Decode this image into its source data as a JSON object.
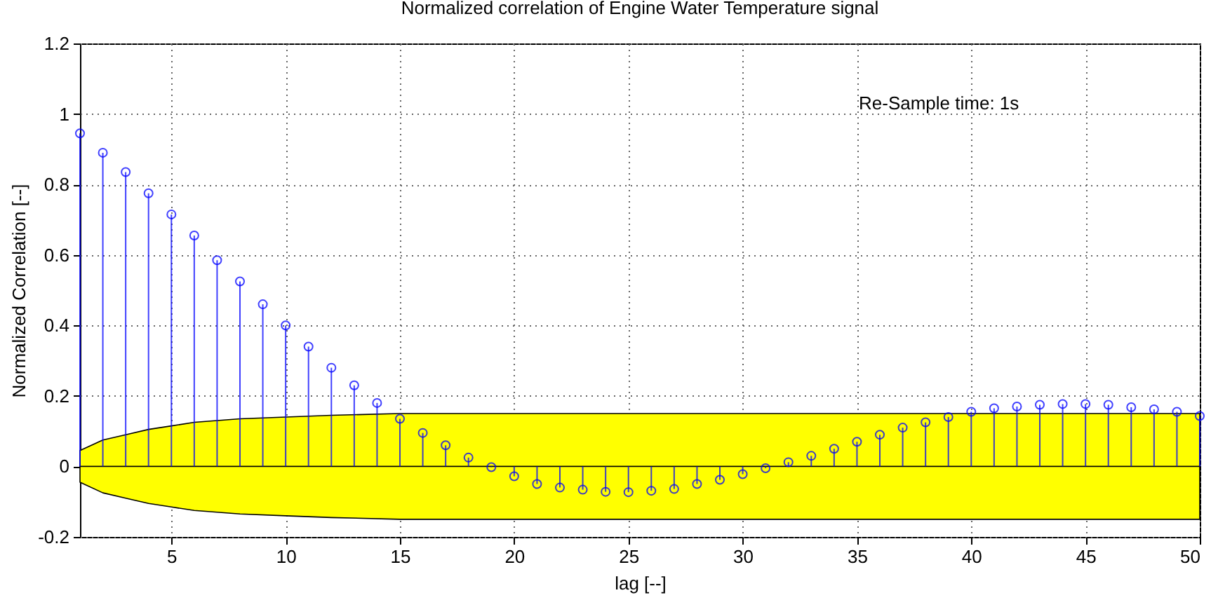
{
  "chart_data": {
    "type": "lollipop",
    "title": "Normalized correlation of Engine Water Temperature signal",
    "xlabel": "lag [--]",
    "ylabel": "Normalized Correlation [--]",
    "annotations": [
      "Re-Sample time: 1s"
    ],
    "x": [
      1,
      2,
      3,
      4,
      5,
      6,
      7,
      8,
      9,
      10,
      11,
      12,
      13,
      14,
      15,
      16,
      17,
      18,
      19,
      20,
      21,
      22,
      23,
      24,
      25,
      26,
      27,
      28,
      29,
      30,
      31,
      32,
      33,
      34,
      35,
      36,
      37,
      38,
      39,
      40,
      41,
      42,
      43,
      44,
      45,
      46,
      47,
      48,
      49,
      50
    ],
    "series": [
      {
        "color": "#0000ff",
        "marker": "circle",
        "values": [
          0.945,
          0.89,
          0.835,
          0.775,
          0.715,
          0.655,
          0.585,
          0.525,
          0.46,
          0.4,
          0.34,
          0.28,
          0.23,
          0.18,
          0.135,
          0.095,
          0.06,
          0.025,
          -0.002,
          -0.028,
          -0.05,
          -0.06,
          -0.066,
          -0.072,
          -0.073,
          -0.069,
          -0.064,
          -0.05,
          -0.038,
          -0.022,
          -0.005,
          0.012,
          0.03,
          0.05,
          0.07,
          0.09,
          0.11,
          0.125,
          0.14,
          0.155,
          0.165,
          0.17,
          0.175,
          0.177,
          0.177,
          0.175,
          0.168,
          0.162,
          0.155,
          0.143
        ]
      },
      {
        "type": "area",
        "color": "#ffff00",
        "x": [
          1,
          2,
          3,
          4,
          5,
          6,
          8,
          10,
          12,
          15,
          50
        ],
        "values": [
          0.045,
          0.075,
          0.09,
          0.105,
          0.115,
          0.125,
          0.135,
          0.14,
          0.145,
          0.15,
          0.15
        ]
      },
      {
        "type": "area",
        "color": "#ffff00",
        "x": [
          1,
          2,
          3,
          4,
          5,
          6,
          8,
          10,
          12,
          15,
          50
        ],
        "values": [
          -0.045,
          -0.075,
          -0.09,
          -0.105,
          -0.115,
          -0.125,
          -0.135,
          -0.14,
          -0.145,
          -0.15,
          -0.15
        ]
      }
    ],
    "xlim": [
      1,
      50
    ],
    "xticks": [
      5,
      10,
      15,
      20,
      25,
      30,
      35,
      40,
      45,
      50
    ],
    "ylim": [
      -0.2,
      1.2
    ],
    "yticks": [
      -0.2,
      0,
      0.2,
      0.4,
      0.6,
      0.8,
      1,
      1.2
    ],
    "grid": true
  }
}
